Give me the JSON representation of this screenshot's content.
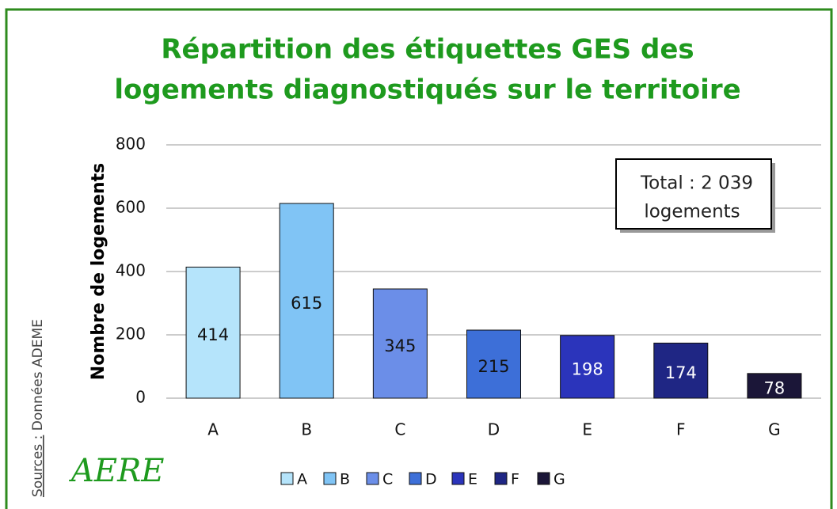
{
  "chart_data": {
    "type": "bar",
    "title": [
      "Répartition des étiquettes GES des",
      "logements diagnostiqués sur le territoire"
    ],
    "ylabel": "Nombre de logements",
    "categories": [
      "A",
      "B",
      "C",
      "D",
      "E",
      "F",
      "G"
    ],
    "values": [
      414,
      615,
      345,
      215,
      198,
      174,
      78
    ],
    "colors": [
      "#b5e4fb",
      "#80c4f5",
      "#6b8ee8",
      "#3d6fd8",
      "#2b34bb",
      "#1f2684",
      "#1b1638"
    ],
    "label_colors": [
      "#111111",
      "#111111",
      "#111111",
      "#111111",
      "#ffffff",
      "#ffffff",
      "#ffffff"
    ],
    "ylim": [
      0,
      800
    ],
    "yticks": [
      0,
      200,
      400,
      600,
      800
    ],
    "grid": true,
    "annotation": [
      "Total : 2 039",
      "logements"
    ],
    "source_label": "Sources :",
    "source": "Données ADEME",
    "logo": "AERE"
  }
}
